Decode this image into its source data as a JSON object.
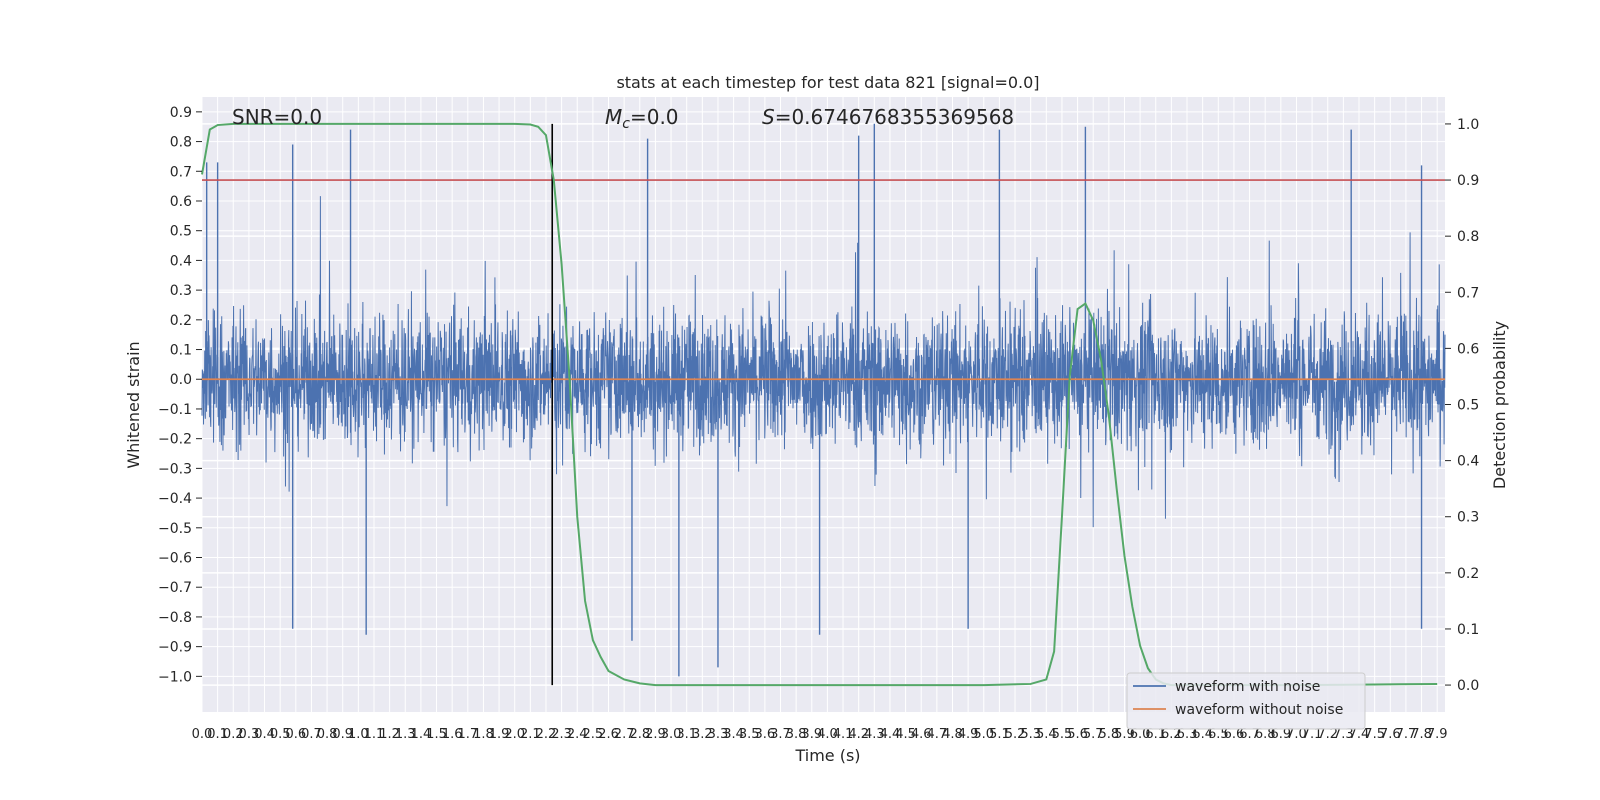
{
  "chart_data": {
    "type": "line",
    "title": "stats at each timestep for test data 821 [signal=0.0]",
    "xlabel": "Time (s)",
    "ylabel": "Whitened strain",
    "y2label": "Detection probability",
    "xlim": [
      0.0,
      7.95
    ],
    "ylim": [
      -1.12,
      0.95
    ],
    "y2lim": [
      -0.048,
      1.048
    ],
    "grid": true,
    "legend_position": "lower-right",
    "x_ticks": [
      "0.0",
      "0.1",
      "0.2",
      "0.3",
      "0.4",
      "0.5",
      "0.6",
      "0.7",
      "0.8",
      "0.9",
      "1.0",
      "1.1",
      "1.2",
      "1.3",
      "1.4",
      "1.5",
      "1.6",
      "1.7",
      "1.8",
      "1.9",
      "2.0",
      "2.1",
      "2.2",
      "2.3",
      "2.4",
      "2.5",
      "2.6",
      "2.7",
      "2.8",
      "2.9",
      "3.0",
      "3.1",
      "3.2",
      "3.3",
      "3.4",
      "3.5",
      "3.6",
      "3.7",
      "3.8",
      "3.9",
      "4.0",
      "4.1",
      "4.2",
      "4.3",
      "4.4",
      "4.5",
      "4.6",
      "4.7",
      "4.8",
      "4.9",
      "5.0",
      "5.1",
      "5.2",
      "5.3",
      "5.4",
      "5.5",
      "5.6",
      "5.7",
      "5.8",
      "5.9",
      "6.0",
      "6.1",
      "6.2",
      "6.3",
      "6.4",
      "6.5",
      "6.6",
      "6.7",
      "6.8",
      "6.9",
      "7.0",
      "7.1",
      "7.2",
      "7.3",
      "7.4",
      "7.5",
      "7.6",
      "7.7",
      "7.8",
      "7.9"
    ],
    "y_ticks": [
      "0.9",
      "0.8",
      "0.7",
      "0.6",
      "0.5",
      "0.4",
      "0.3",
      "0.2",
      "0.1",
      "0.0",
      "-0.1",
      "-0.2",
      "-0.3",
      "-0.4",
      "-0.5",
      "-0.6",
      "-0.7",
      "-0.8",
      "-0.9",
      "-1.0"
    ],
    "y2_ticks": [
      "1.0",
      "0.9",
      "0.8",
      "0.7",
      "0.6",
      "0.5",
      "0.4",
      "0.3",
      "0.2",
      "0.1",
      "0.0"
    ],
    "annotations": {
      "snr": "SNR=0.0",
      "mc_symbol": "M",
      "mc_sub": "c",
      "mc_value": "=0.0",
      "s_symbol": "S",
      "s_value": "=0.6746768355369568"
    },
    "threshold_probability": 0.9,
    "event_marker_time": 2.24,
    "series": [
      {
        "name": "waveform with noise",
        "color": "#4c72b0",
        "description_amplitude": 0.4,
        "peaks": [
          {
            "x": 0.03,
            "y": 0.73
          },
          {
            "x": 0.1,
            "y": 0.73
          },
          {
            "x": 0.58,
            "y": 0.79
          },
          {
            "x": 0.95,
            "y": 0.84
          },
          {
            "x": 2.85,
            "y": 0.81
          },
          {
            "x": 4.2,
            "y": 0.82
          },
          {
            "x": 4.3,
            "y": 0.86
          },
          {
            "x": 5.1,
            "y": 0.84
          },
          {
            "x": 5.65,
            "y": 0.85
          },
          {
            "x": 7.35,
            "y": 0.84
          },
          {
            "x": 7.8,
            "y": 0.72
          },
          {
            "x": 0.58,
            "y": -0.84
          },
          {
            "x": 1.05,
            "y": -0.86
          },
          {
            "x": 2.75,
            "y": -0.88
          },
          {
            "x": 3.05,
            "y": -1.0
          },
          {
            "x": 3.3,
            "y": -0.97
          },
          {
            "x": 3.95,
            "y": -0.86
          },
          {
            "x": 4.9,
            "y": -0.84
          },
          {
            "x": 7.8,
            "y": -0.84
          }
        ]
      },
      {
        "name": "waveform without noise",
        "color": "#dd8452",
        "values": [
          0.0
        ]
      },
      {
        "name": "detection probability",
        "color": "#55a868",
        "x": [
          0.0,
          0.05,
          0.1,
          0.2,
          0.5,
          1.0,
          1.5,
          2.0,
          2.1,
          2.15,
          2.2,
          2.25,
          2.3,
          2.35,
          2.4,
          2.45,
          2.5,
          2.55,
          2.6,
          2.7,
          2.8,
          2.9,
          3.0,
          3.5,
          4.0,
          4.5,
          5.0,
          5.3,
          5.4,
          5.45,
          5.5,
          5.55,
          5.6,
          5.65,
          5.7,
          5.75,
          5.8,
          5.85,
          5.9,
          5.95,
          6.0,
          6.05,
          6.1,
          6.15,
          6.2,
          6.25,
          6.3,
          6.4,
          6.5,
          7.0,
          7.5,
          7.9
        ],
        "values": [
          0.91,
          0.99,
          0.998,
          1.0,
          1.0,
          1.0,
          1.0,
          1.0,
          0.999,
          0.995,
          0.98,
          0.9,
          0.75,
          0.55,
          0.3,
          0.15,
          0.08,
          0.05,
          0.025,
          0.01,
          0.003,
          0.0,
          0.0,
          0.0,
          0.0,
          0.0,
          0.0,
          0.002,
          0.01,
          0.06,
          0.3,
          0.55,
          0.67,
          0.68,
          0.65,
          0.58,
          0.48,
          0.35,
          0.23,
          0.14,
          0.07,
          0.03,
          0.01,
          0.003,
          0.0,
          0.0,
          0.0,
          0.0,
          0.0,
          0.0,
          0.001,
          0.002
        ]
      },
      {
        "name": "threshold",
        "color": "#c44e52",
        "values": [
          0.9
        ]
      }
    ]
  }
}
